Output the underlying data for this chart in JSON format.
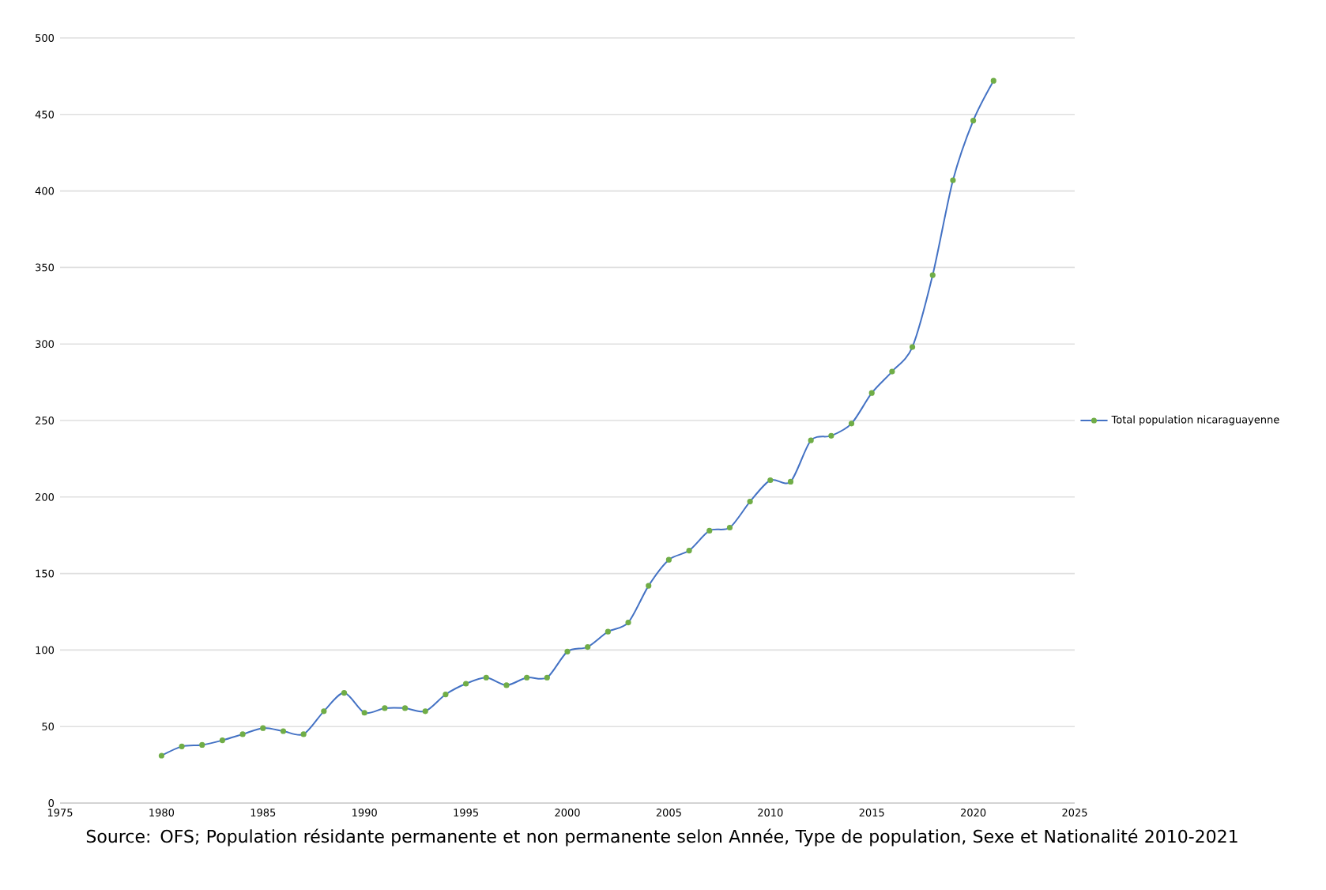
{
  "chart_data": {
    "type": "line",
    "x": [
      1980,
      1981,
      1982,
      1983,
      1984,
      1985,
      1986,
      1987,
      1988,
      1989,
      1990,
      1991,
      1992,
      1993,
      1994,
      1995,
      1996,
      1997,
      1998,
      1999,
      2000,
      2001,
      2002,
      2003,
      2004,
      2005,
      2006,
      2007,
      2008,
      2009,
      2010,
      2011,
      2012,
      2013,
      2014,
      2015,
      2016,
      2017,
      2018,
      2019,
      2020,
      2021
    ],
    "series": [
      {
        "name": "Total population nicaraguayenne",
        "color": "#4472c4",
        "values": [
          31,
          37,
          38,
          41,
          45,
          49,
          47,
          45,
          60,
          72,
          59,
          62,
          62,
          60,
          71,
          78,
          82,
          77,
          82,
          82,
          99,
          102,
          112,
          118,
          142,
          159,
          165,
          178,
          180,
          197,
          211,
          210,
          237,
          240,
          248,
          268,
          282,
          298,
          345,
          407,
          446,
          472
        ]
      }
    ],
    "xlim": [
      1975,
      2025
    ],
    "xticks": [
      1975,
      1980,
      1985,
      1990,
      1995,
      2000,
      2005,
      2010,
      2015,
      2020,
      2025
    ],
    "ylim": [
      0,
      500
    ],
    "yticks": [
      0,
      50,
      100,
      150,
      200,
      250,
      300,
      350,
      400,
      450,
      500
    ],
    "grid": "y",
    "legend": "right",
    "marker": "circle",
    "line_style": "solid",
    "annotations": [
      "Source: OFS; Population résidante permanente et non permanente selon Année, Type de population, Sexe et Nationalité 2010-2021"
    ]
  }
}
